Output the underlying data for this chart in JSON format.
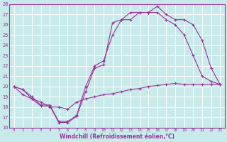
{
  "xlabel": "Windchill (Refroidissement éolien,°C)",
  "bg_color": "#c8eaea",
  "grid_color": "#ffffff",
  "line_color": "#993399",
  "xlim": [
    -0.5,
    23.5
  ],
  "ylim": [
    16,
    28
  ],
  "xticks": [
    0,
    1,
    2,
    3,
    4,
    5,
    6,
    7,
    8,
    9,
    10,
    11,
    12,
    13,
    14,
    15,
    16,
    17,
    18,
    19,
    20,
    21,
    22,
    23
  ],
  "yticks": [
    16,
    17,
    18,
    19,
    20,
    21,
    22,
    23,
    24,
    25,
    26,
    27,
    28
  ],
  "curve1_x": [
    0,
    1,
    2,
    3,
    4,
    5,
    6,
    7,
    8,
    9,
    10,
    11,
    12,
    13,
    14,
    15,
    16,
    17,
    18,
    19,
    20,
    21,
    22,
    23
  ],
  "curve1_y": [
    20.0,
    19.7,
    18.8,
    18.1,
    18.1,
    16.5,
    16.5,
    17.1,
    19.5,
    21.8,
    22.1,
    26.2,
    26.5,
    26.5,
    27.2,
    27.2,
    27.8,
    27.0,
    26.5,
    26.5,
    26.0,
    24.5,
    21.8,
    20.2
  ],
  "curve2_x": [
    0,
    1,
    2,
    3,
    4,
    5,
    6,
    7,
    8,
    9,
    10,
    11,
    12,
    13,
    14,
    15,
    16,
    17,
    18,
    19,
    20,
    21,
    22,
    23
  ],
  "curve2_y": [
    20.0,
    19.7,
    19.0,
    18.2,
    18.2,
    16.6,
    16.6,
    17.2,
    20.0,
    22.0,
    22.5,
    25.0,
    26.5,
    27.2,
    27.2,
    27.2,
    27.2,
    26.5,
    26.0,
    25.0,
    23.0,
    21.0,
    20.5,
    20.2
  ],
  "curve3_x": [
    0,
    1,
    2,
    3,
    4,
    5,
    6,
    7,
    8,
    9,
    10,
    11,
    12,
    13,
    14,
    15,
    16,
    17,
    18,
    19,
    20,
    21,
    22,
    23
  ],
  "curve3_y": [
    20.0,
    19.2,
    18.8,
    18.5,
    18.0,
    18.0,
    17.8,
    18.5,
    18.8,
    19.0,
    19.2,
    19.3,
    19.5,
    19.7,
    19.8,
    20.0,
    20.1,
    20.2,
    20.3,
    20.2,
    20.2,
    20.2,
    20.2,
    20.2
  ]
}
